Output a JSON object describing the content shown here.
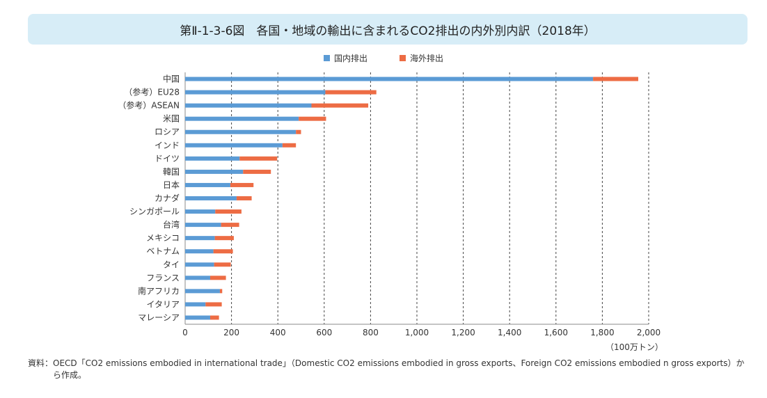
{
  "title": "第Ⅱ-1-3-6図　各国・地域の輸出に含まれるCO2排出の内外別内訳（2018年）",
  "legend": {
    "domestic": "国内排出",
    "foreign": "海外排出"
  },
  "colors": {
    "domestic": "#5b9bd5",
    "foreign": "#ed6c44"
  },
  "unit": "（100万トン）",
  "source": {
    "label": "資料：",
    "text": "OECD「CO2 emissions embodied in international trade」（Domestic CO2 emissions embodied in gross exports、Foreign CO2 emissions embodied n gross exports）から作成。"
  },
  "chart_data": {
    "type": "bar",
    "orientation": "horizontal",
    "stacked": true,
    "categories": [
      "中国",
      "（参考）EU28",
      "（参考）ASEAN",
      "米国",
      "ロシア",
      "インド",
      "ドイツ",
      "韓国",
      "日本",
      "カナダ",
      "シンガポール",
      "台湾",
      "メキシコ",
      "ベトナム",
      "タイ",
      "フランス",
      "南アフリカ",
      "イタリア",
      "マレーシア"
    ],
    "series": [
      {
        "name": "国内排出",
        "values": [
          1760,
          605,
          545,
          490,
          478,
          420,
          235,
          250,
          195,
          222,
          130,
          155,
          128,
          122,
          125,
          108,
          150,
          88,
          108
        ]
      },
      {
        "name": "海外排出",
        "values": [
          195,
          220,
          245,
          118,
          22,
          58,
          162,
          120,
          100,
          65,
          113,
          78,
          82,
          84,
          72,
          68,
          10,
          70,
          38
        ]
      }
    ],
    "xlim": [
      0,
      2000
    ],
    "ticks": [
      "0",
      "200",
      "400",
      "600",
      "800",
      "1,000",
      "1,200",
      "1,400",
      "1,600",
      "1,800",
      "2,000"
    ],
    "tick_values": [
      0,
      200,
      400,
      600,
      800,
      1000,
      1200,
      1400,
      1600,
      1800,
      2000
    ],
    "grid": "vertical-dashed",
    "legend_position": "top-center"
  }
}
